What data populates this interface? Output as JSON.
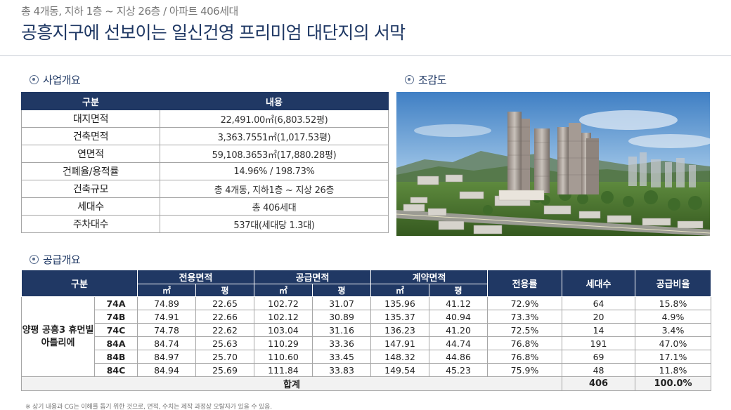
{
  "header": {
    "subtitle": "총 4개동, 지하 1층 ~ 지상 26층 / 아파트 406세대",
    "title": "공흥지구에 선보이는 일신건영 프리미엄 대단지의 서막"
  },
  "overview": {
    "heading": "사업개요",
    "col_label": "구분",
    "col_value": "내용",
    "rows": [
      {
        "label": "대지면적",
        "value": "22,491.00㎡(6,803.52평)"
      },
      {
        "label": "건축면적",
        "value": "3,363.7551㎡(1,017.53평)"
      },
      {
        "label": "연면적",
        "value": "59,108.3653㎡(17,880.28평)"
      },
      {
        "label": "건폐율/용적률",
        "value": "14.96% / 198.73%"
      },
      {
        "label": "건축규모",
        "value": "총 4개동, 지하1층 ~ 지상 26층"
      },
      {
        "label": "세대수",
        "value": "총 406세대"
      },
      {
        "label": "주차대수",
        "value": "537대(세대당 1.3대)"
      }
    ]
  },
  "birdseye": {
    "heading": "조감도"
  },
  "supply": {
    "heading": "공급개요",
    "headers": {
      "category": "구분",
      "exclusive": "전용면적",
      "supply": "공급면적",
      "contract": "계약면적",
      "sqm": "㎡",
      "pyeong": "평",
      "ratio": "전용률",
      "households": "세대수",
      "share": "공급비율"
    },
    "complex_name": "양평 공흥3 휴먼빌 아틀리에",
    "rows": [
      {
        "type": "74A",
        "ex_m2": "74.89",
        "ex_py": "22.65",
        "sp_m2": "102.72",
        "sp_py": "31.07",
        "ct_m2": "135.96",
        "ct_py": "41.12",
        "ratio": "72.9%",
        "households": "64",
        "share": "15.8%"
      },
      {
        "type": "74B",
        "ex_m2": "74.91",
        "ex_py": "22.66",
        "sp_m2": "102.12",
        "sp_py": "30.89",
        "ct_m2": "135.37",
        "ct_py": "40.94",
        "ratio": "73.3%",
        "households": "20",
        "share": "4.9%"
      },
      {
        "type": "74C",
        "ex_m2": "74.78",
        "ex_py": "22.62",
        "sp_m2": "103.04",
        "sp_py": "31.16",
        "ct_m2": "136.23",
        "ct_py": "41.20",
        "ratio": "72.5%",
        "households": "14",
        "share": "3.4%"
      },
      {
        "type": "84A",
        "ex_m2": "84.74",
        "ex_py": "25.63",
        "sp_m2": "110.29",
        "sp_py": "33.36",
        "ct_m2": "147.91",
        "ct_py": "44.74",
        "ratio": "76.8%",
        "households": "191",
        "share": "47.0%"
      },
      {
        "type": "84B",
        "ex_m2": "84.97",
        "ex_py": "25.70",
        "sp_m2": "110.60",
        "sp_py": "33.45",
        "ct_m2": "148.32",
        "ct_py": "44.86",
        "ratio": "76.8%",
        "households": "69",
        "share": "17.1%"
      },
      {
        "type": "84C",
        "ex_m2": "84.94",
        "ex_py": "25.69",
        "sp_m2": "111.84",
        "sp_py": "33.83",
        "ct_m2": "149.54",
        "ct_py": "45.23",
        "ratio": "75.9%",
        "households": "48",
        "share": "11.8%"
      }
    ],
    "total": {
      "label": "합계",
      "households": "406",
      "share": "100.0%"
    }
  },
  "footnote": "※ 상기 내용과 CG는 이해를 돕기 위한 것으로, 면적, 수치는 제작 과정상 오탈자가 있을 수 있음."
}
